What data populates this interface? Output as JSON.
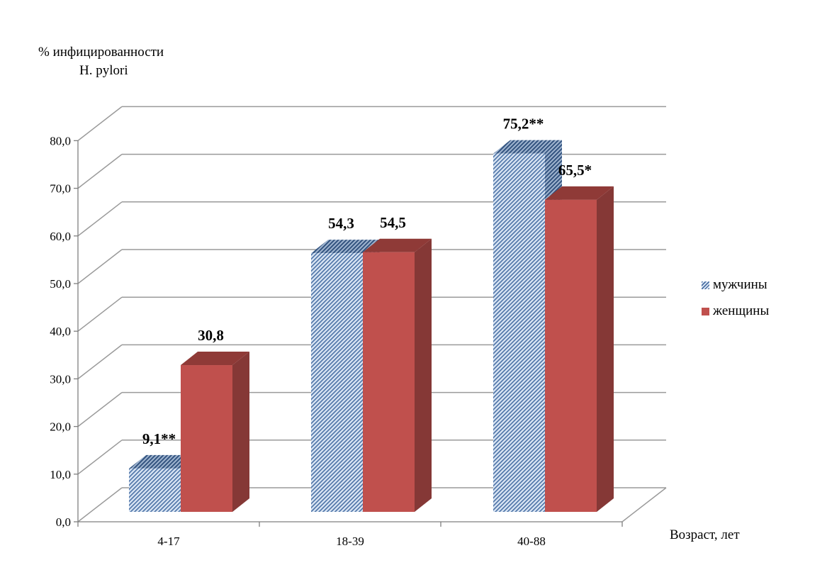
{
  "chart_data": {
    "type": "bar",
    "title": "",
    "ylabel": [
      "% инфицированности",
      "H. pylori"
    ],
    "xlabel": "Возраст, лет",
    "categories": [
      "4-17",
      "18-39",
      "40-88"
    ],
    "ylim": [
      0,
      80
    ],
    "yticks": [
      "0,0",
      "10,0",
      "20,0",
      "30,0",
      "40,0",
      "50,0",
      "60,0",
      "70,0",
      "80,0"
    ],
    "grid": true,
    "legend_position": "right",
    "series": [
      {
        "name": "мужчины",
        "values": [
          9.1,
          54.3,
          75.2
        ],
        "labels": [
          "9,1**",
          "54,3",
          "75,2**"
        ],
        "color": "#8eaed8"
      },
      {
        "name": "женщины",
        "values": [
          30.8,
          54.5,
          65.5
        ],
        "labels": [
          "30,8",
          "54,5",
          "65,5*"
        ],
        "color": "#c0504d"
      }
    ]
  }
}
